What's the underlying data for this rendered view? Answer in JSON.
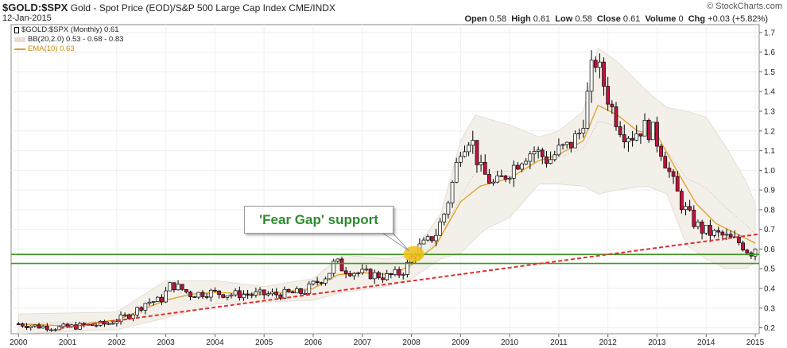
{
  "header": {
    "symbol": "$GOLD:$SPX",
    "description": "Gold - Spot Price (EOD)/S&P 500 Large Cap Index  CME/INDX",
    "date": "12-Jan-2015",
    "brand": "© StockCharts.com",
    "ohlc": {
      "open_label": "Open",
      "open": "0.58",
      "high_label": "High",
      "high": "0.61",
      "low_label": "Low",
      "low": "0.58",
      "close_label": "Close",
      "close": "0.61",
      "volume_label": "Volume",
      "volume": "0",
      "chg_label": "Chg",
      "chg": "+0.03 (+5.82%)"
    }
  },
  "legend": {
    "price": "$GOLD:$SPX (Monthly) 0.61",
    "bb": "BB(20,2.0) 0.53 - 0.68 - 0.83",
    "ema": "EMA(10) 0.63"
  },
  "colors": {
    "up": "#ffffff",
    "down": "#c0143c",
    "wick": "#000000",
    "band": "#f3efe9",
    "ema": "#e0a020",
    "support": "#3a9a1a",
    "trend": "#e03030",
    "accent": "#f2c012"
  },
  "annotation": {
    "text": "'Fear Gap' support"
  },
  "chart_data": {
    "type": "candlestick",
    "title": "$GOLD:$SPX (Monthly)",
    "xlabel": "",
    "ylabel": "",
    "xlim": [
      1999.85,
      2015.08
    ],
    "ylim": [
      0.17,
      1.74
    ],
    "x_ticks": [
      "2000",
      "2001",
      "2002",
      "2003",
      "2004",
      "2005",
      "2006",
      "2007",
      "2008",
      "2009",
      "2010",
      "2011",
      "2012",
      "2013",
      "2014",
      "2015"
    ],
    "y_ticks": [
      "0.2",
      "0.3",
      "0.4",
      "0.5",
      "0.6",
      "0.7",
      "0.8",
      "0.9",
      "1.0",
      "1.1",
      "1.2",
      "1.3",
      "1.4",
      "1.5",
      "1.6",
      "1.7"
    ],
    "anchors": [
      [
        2000.0,
        0.22
      ],
      [
        2000.3,
        0.21
      ],
      [
        2000.8,
        0.2
      ],
      [
        2001.3,
        0.21
      ],
      [
        2001.8,
        0.22
      ],
      [
        2002.3,
        0.27
      ],
      [
        2002.6,
        0.33
      ],
      [
        2002.9,
        0.34
      ],
      [
        2003.1,
        0.42
      ],
      [
        2003.3,
        0.4
      ],
      [
        2003.5,
        0.37
      ],
      [
        2003.9,
        0.38
      ],
      [
        2004.3,
        0.37
      ],
      [
        2004.8,
        0.37
      ],
      [
        2005.3,
        0.37
      ],
      [
        2005.8,
        0.38
      ],
      [
        2006.0,
        0.42
      ],
      [
        2006.3,
        0.47
      ],
      [
        2006.45,
        0.54
      ],
      [
        2006.6,
        0.5
      ],
      [
        2006.9,
        0.48
      ],
      [
        2007.2,
        0.47
      ],
      [
        2007.5,
        0.46
      ],
      [
        2007.8,
        0.48
      ],
      [
        2007.95,
        0.53
      ],
      [
        2008.1,
        0.6
      ],
      [
        2008.3,
        0.63
      ],
      [
        2008.5,
        0.68
      ],
      [
        2008.7,
        0.8
      ],
      [
        2008.85,
        0.95
      ],
      [
        2009.0,
        1.12
      ],
      [
        2009.2,
        1.18
      ],
      [
        2009.4,
        1.0
      ],
      [
        2009.7,
        0.92
      ],
      [
        2010.0,
        1.0
      ],
      [
        2010.3,
        1.08
      ],
      [
        2010.5,
        1.1
      ],
      [
        2010.8,
        1.05
      ],
      [
        2011.0,
        1.1
      ],
      [
        2011.2,
        1.12
      ],
      [
        2011.45,
        1.2
      ],
      [
        2011.6,
        1.4
      ],
      [
        2011.72,
        1.58
      ],
      [
        2011.9,
        1.45
      ],
      [
        2012.1,
        1.3
      ],
      [
        2012.3,
        1.2
      ],
      [
        2012.5,
        1.18
      ],
      [
        2012.7,
        1.22
      ],
      [
        2012.9,
        1.2
      ],
      [
        2013.1,
        1.1
      ],
      [
        2013.3,
        0.95
      ],
      [
        2013.5,
        0.83
      ],
      [
        2013.7,
        0.75
      ],
      [
        2013.9,
        0.7
      ],
      [
        2014.1,
        0.68
      ],
      [
        2014.3,
        0.67
      ],
      [
        2014.5,
        0.65
      ],
      [
        2014.7,
        0.63
      ],
      [
        2014.9,
        0.58
      ],
      [
        2015.0,
        0.61
      ]
    ],
    "ema_series": [
      [
        2000.0,
        0.22
      ],
      [
        2001.0,
        0.21
      ],
      [
        2002.0,
        0.24
      ],
      [
        2002.6,
        0.3
      ],
      [
        2003.0,
        0.34
      ],
      [
        2003.5,
        0.37
      ],
      [
        2004.0,
        0.38
      ],
      [
        2005.0,
        0.37
      ],
      [
        2006.0,
        0.4
      ],
      [
        2006.5,
        0.47
      ],
      [
        2007.0,
        0.48
      ],
      [
        2007.6,
        0.47
      ],
      [
        2008.0,
        0.52
      ],
      [
        2008.5,
        0.62
      ],
      [
        2009.0,
        0.84
      ],
      [
        2009.4,
        0.92
      ],
      [
        2010.0,
        0.96
      ],
      [
        2010.6,
        1.05
      ],
      [
        2011.0,
        1.08
      ],
      [
        2011.5,
        1.15
      ],
      [
        2011.8,
        1.33
      ],
      [
        2012.2,
        1.28
      ],
      [
        2012.6,
        1.2
      ],
      [
        2013.0,
        1.18
      ],
      [
        2013.4,
        1.0
      ],
      [
        2013.8,
        0.83
      ],
      [
        2014.2,
        0.73
      ],
      [
        2014.6,
        0.68
      ],
      [
        2015.0,
        0.63
      ]
    ],
    "bb_upper": [
      [
        2000.0,
        0.27
      ],
      [
        2002.0,
        0.28
      ],
      [
        2003.0,
        0.44
      ],
      [
        2004.0,
        0.44
      ],
      [
        2005.0,
        0.41
      ],
      [
        2006.0,
        0.45
      ],
      [
        2006.6,
        0.57
      ],
      [
        2007.5,
        0.55
      ],
      [
        2008.0,
        0.57
      ],
      [
        2008.6,
        0.78
      ],
      [
        2009.0,
        1.15
      ],
      [
        2009.3,
        1.28
      ],
      [
        2010.0,
        1.23
      ],
      [
        2010.6,
        1.17
      ],
      [
        2011.0,
        1.2
      ],
      [
        2011.5,
        1.3
      ],
      [
        2011.8,
        1.62
      ],
      [
        2012.2,
        1.55
      ],
      [
        2012.8,
        1.4
      ],
      [
        2013.2,
        1.32
      ],
      [
        2013.6,
        1.3
      ],
      [
        2014.0,
        1.27
      ],
      [
        2014.4,
        1.12
      ],
      [
        2014.8,
        0.95
      ],
      [
        2015.0,
        0.83
      ]
    ],
    "bb_lower": [
      [
        2000.0,
        0.17
      ],
      [
        2002.0,
        0.19
      ],
      [
        2003.0,
        0.25
      ],
      [
        2004.0,
        0.32
      ],
      [
        2005.0,
        0.33
      ],
      [
        2006.0,
        0.34
      ],
      [
        2006.6,
        0.38
      ],
      [
        2007.5,
        0.41
      ],
      [
        2008.0,
        0.45
      ],
      [
        2008.6,
        0.55
      ],
      [
        2009.0,
        0.58
      ],
      [
        2009.5,
        0.7
      ],
      [
        2010.0,
        0.76
      ],
      [
        2010.6,
        0.93
      ],
      [
        2011.0,
        0.93
      ],
      [
        2011.5,
        0.92
      ],
      [
        2011.8,
        0.88
      ],
      [
        2012.2,
        0.9
      ],
      [
        2012.8,
        0.92
      ],
      [
        2013.2,
        0.88
      ],
      [
        2013.6,
        0.62
      ],
      [
        2014.0,
        0.55
      ],
      [
        2014.4,
        0.5
      ],
      [
        2014.8,
        0.5
      ],
      [
        2015.0,
        0.53
      ]
    ],
    "support_lines": [
      0.573,
      0.527
    ],
    "trendline": [
      [
        2000.85,
        0.198
      ],
      [
        2015.05,
        0.675
      ]
    ],
    "highlight_point": [
      2008.05,
      0.575
    ]
  }
}
